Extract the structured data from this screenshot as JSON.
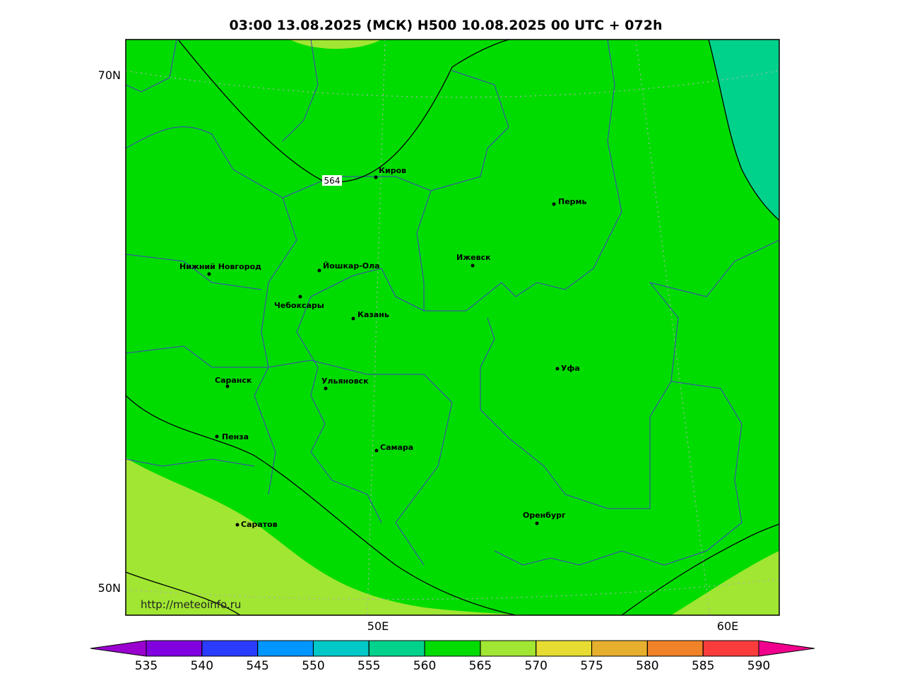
{
  "header": {
    "title": "03:00 13.08.2025 (МСК) H500  10.08.2025 00 UTC + 072h"
  },
  "map": {
    "lat_labels": [
      "70N",
      "50N"
    ],
    "lon_labels": [
      "50E",
      "60E"
    ],
    "contour_label": "564",
    "source": "http://meteoinfo.ru",
    "cities": [
      "Киров",
      "Пермь",
      "Нижний Новгород",
      "Йошкар-Ола",
      "Ижевск",
      "Чебоксары",
      "Казань",
      "Уфа",
      "Саранск",
      "Ульяновск",
      "Пенза",
      "Самара",
      "Оренбург",
      "Саратов"
    ]
  },
  "colorbar": {
    "ticks": [
      535,
      540,
      545,
      550,
      555,
      560,
      565,
      570,
      575,
      580,
      585,
      590
    ],
    "under_color": "#9a00d0",
    "over_color": "#f0008c",
    "colors": [
      "#8000e0",
      "#2a3cff",
      "#0096ff",
      "#00c8c8",
      "#00d28c",
      "#00dc00",
      "#a0e632",
      "#e6dc32",
      "#e6af2d",
      "#f08228",
      "#fa3c3c"
    ]
  }
}
